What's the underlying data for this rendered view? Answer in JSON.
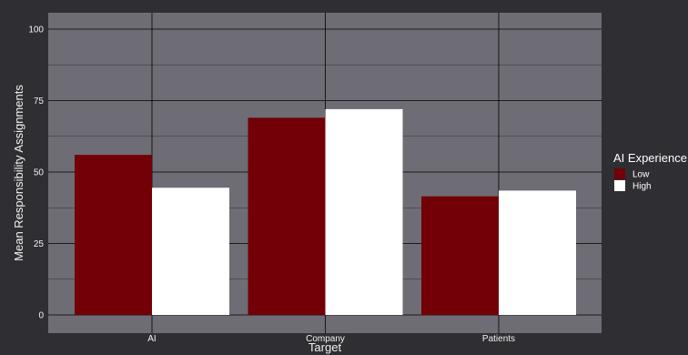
{
  "chart_data": {
    "type": "bar",
    "categories": [
      "AI",
      "Company",
      "Patients"
    ],
    "series": [
      {
        "name": "Low",
        "values": [
          56,
          69,
          41.5
        ],
        "color": "#720006"
      },
      {
        "name": "High",
        "values": [
          44.5,
          72,
          43.5
        ],
        "color": "#ffffff"
      }
    ],
    "xlabel": "Target",
    "ylabel": "Mean Responsibility Assignments",
    "ylim": [
      0,
      100
    ],
    "yticks": [
      "0",
      "25",
      "50",
      "75",
      "100"
    ],
    "grid": true,
    "legend": {
      "title": "AI Experience",
      "placement": "right"
    },
    "colors": {
      "background": "#2f2f33",
      "panel": "#6e6d75",
      "grid": "#000000",
      "text": "#f2f2f2"
    }
  }
}
